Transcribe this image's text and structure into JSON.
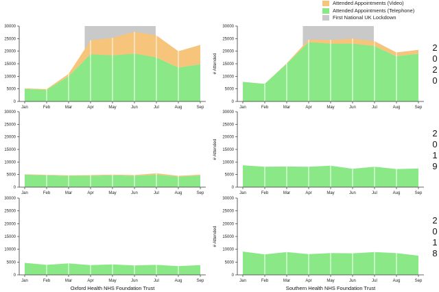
{
  "colors": {
    "video": "#f6c47a",
    "telephone": "#8ae886",
    "lockdown": "#c9c9c9",
    "axis": "#333333",
    "separator": "#ffffff"
  },
  "legend": [
    {
      "label": "Attended Appointments (Video)",
      "color_key": "video"
    },
    {
      "label": "Attended Appointments (Telephone)",
      "color_key": "telephone"
    },
    {
      "label": "First National UK Lockdown",
      "color_key": "lockdown"
    }
  ],
  "columns": [
    "Oxford Health NHS Foundation Trust",
    "Southern Health NHS Foundation Trust"
  ],
  "rows": [
    "2020",
    "2019",
    "2018"
  ],
  "chart_data": {
    "type": "area",
    "stacked": true,
    "categories": [
      "Jan",
      "Feb",
      "Mar",
      "Apr",
      "May",
      "Jun",
      "Jul",
      "Aug",
      "Sep"
    ],
    "ylim": [
      0,
      30000
    ],
    "yticks": [
      0,
      5000,
      10000,
      15000,
      20000,
      25000,
      30000
    ],
    "ylabel": "# Attended",
    "lockdown_span": [
      "Mar 23",
      "Jun 30"
    ],
    "panels": [
      {
        "id": "oxford-2020",
        "trust": "Oxford Health NHS Foundation Trust",
        "year": "2020",
        "show_ylabel": false,
        "lockdown": true,
        "series": [
          {
            "name": "Attended Appointments (Telephone)",
            "color_key": "telephone",
            "values": [
              5000,
              4600,
              10000,
              18800,
              18300,
              19000,
              17500,
              13500,
              14800
            ]
          },
          {
            "name": "Attended Appointments (Video)",
            "color_key": "video",
            "values": [
              200,
              300,
              1000,
              5500,
              7000,
              8700,
              8800,
              6500,
              7700
            ]
          }
        ]
      },
      {
        "id": "southern-2020",
        "trust": "Southern Health NHS Foundation Trust",
        "year": "2020",
        "show_ylabel": true,
        "lockdown": true,
        "series": [
          {
            "name": "Attended Appointments (Telephone)",
            "color_key": "telephone",
            "values": [
              7800,
              7000,
              15000,
              23600,
              23000,
              23000,
              22000,
              18000,
              19000
            ]
          },
          {
            "name": "Attended Appointments (Video)",
            "color_key": "video",
            "values": [
              0,
              0,
              200,
              1000,
              1500,
              2000,
              2000,
              1500,
              1500
            ]
          }
        ]
      },
      {
        "id": "oxford-2019",
        "trust": "Oxford Health NHS Foundation Trust",
        "year": "2019",
        "show_ylabel": false,
        "lockdown": false,
        "series": [
          {
            "name": "Attended Appointments (Telephone)",
            "color_key": "telephone",
            "values": [
              5000,
              4700,
              4500,
              4500,
              4700,
              4500,
              5000,
              4200,
              4600
            ]
          },
          {
            "name": "Attended Appointments (Video)",
            "color_key": "video",
            "values": [
              100,
              200,
              200,
              300,
              300,
              300,
              500,
              300,
              400
            ]
          }
        ]
      },
      {
        "id": "southern-2019",
        "trust": "Southern Health NHS Foundation Trust",
        "year": "2019",
        "show_ylabel": true,
        "lockdown": false,
        "series": [
          {
            "name": "Attended Appointments (Telephone)",
            "color_key": "telephone",
            "values": [
              8700,
              8100,
              8200,
              8100,
              8500,
              7300,
              8100,
              7200,
              7400
            ]
          },
          {
            "name": "Attended Appointments (Video)",
            "color_key": "video",
            "values": [
              0,
              0,
              0,
              0,
              0,
              0,
              0,
              0,
              0
            ]
          }
        ]
      },
      {
        "id": "oxford-2018",
        "trust": "Oxford Health NHS Foundation Trust",
        "year": "2018",
        "show_ylabel": false,
        "lockdown": false,
        "series": [
          {
            "name": "Attended Appointments (Telephone)",
            "color_key": "telephone",
            "values": [
              4700,
              3900,
              4500,
              3800,
              4100,
              3700,
              3900,
              3400,
              3800
            ]
          },
          {
            "name": "Attended Appointments (Video)",
            "color_key": "video",
            "values": [
              0,
              0,
              0,
              0,
              0,
              0,
              0,
              0,
              0
            ]
          }
        ]
      },
      {
        "id": "southern-2018",
        "trust": "Southern Health NHS Foundation Trust",
        "year": "2018",
        "show_ylabel": true,
        "lockdown": false,
        "series": [
          {
            "name": "Attended Appointments (Telephone)",
            "color_key": "telephone",
            "values": [
              9100,
              8000,
              8900,
              8100,
              8500,
              8400,
              8900,
              8500,
              7500
            ]
          },
          {
            "name": "Attended Appointments (Video)",
            "color_key": "video",
            "values": [
              0,
              0,
              0,
              0,
              0,
              0,
              0,
              0,
              0
            ]
          }
        ]
      }
    ]
  }
}
